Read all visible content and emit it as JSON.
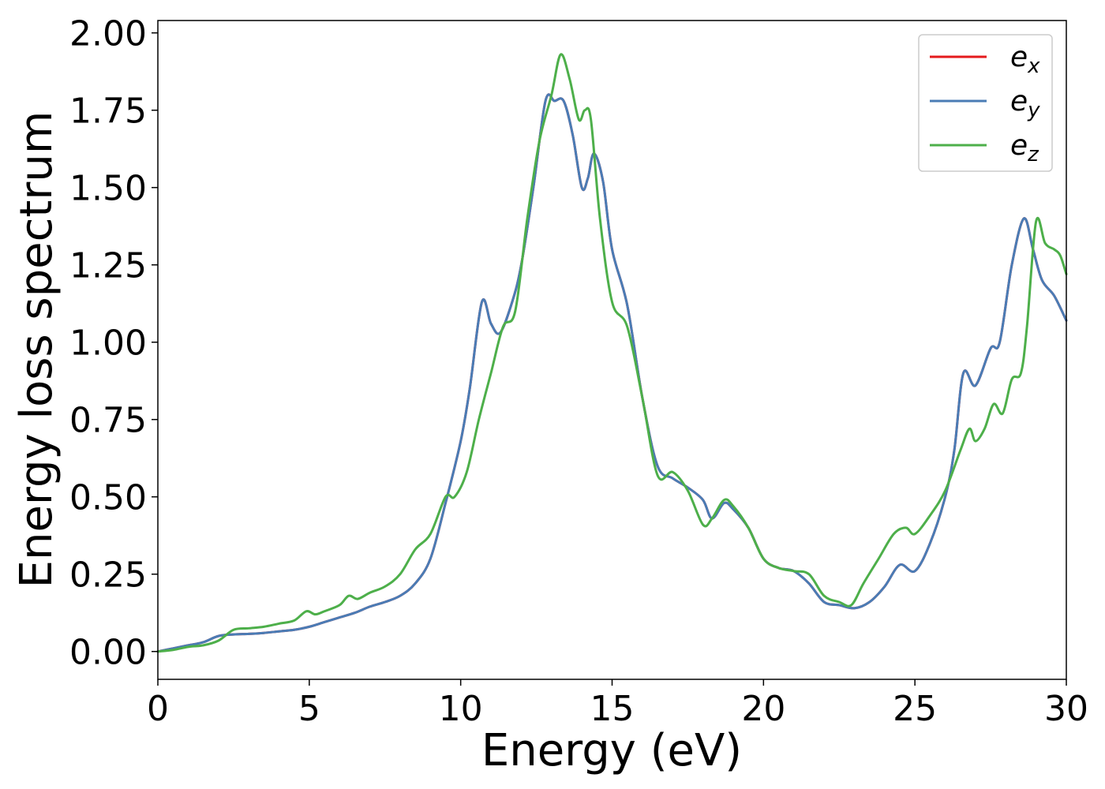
{
  "chart_data": {
    "type": "line",
    "title": "",
    "xlabel": "Energy (eV)",
    "ylabel": "Energy loss spectrum",
    "xlim": [
      0,
      30
    ],
    "ylim": [
      -0.09,
      2.04
    ],
    "xticks": [
      0,
      5,
      10,
      15,
      20,
      25,
      30
    ],
    "xtick_labels": [
      "0",
      "5",
      "10",
      "15",
      "20",
      "25",
      "30"
    ],
    "yticks": [
      0.0,
      0.25,
      0.5,
      0.75,
      1.0,
      1.25,
      1.5,
      1.75,
      2.0
    ],
    "ytick_labels": [
      "0.00",
      "0.25",
      "0.50",
      "0.75",
      "1.00",
      "1.25",
      "1.50",
      "1.75",
      "2.00"
    ],
    "grid": false,
    "legend_position": "top-right",
    "series": [
      {
        "name": "e_x",
        "legend_base": "e",
        "legend_sub": "x",
        "color": "#e41a1c",
        "x": [
          0,
          0.5,
          1,
          1.5,
          2,
          2.5,
          3,
          3.5,
          4,
          4.5,
          5,
          5.5,
          6,
          6.5,
          7,
          7.5,
          8,
          8.5,
          9,
          9.5,
          10,
          10.3,
          10.7,
          11.0,
          11.3,
          11.7,
          12.0,
          12.4,
          12.8,
          13.1,
          13.4,
          13.7,
          14.0,
          14.2,
          14.4,
          14.7,
          15.0,
          15.5,
          16.0,
          16.5,
          17.0,
          17.5,
          18.0,
          18.3,
          18.7,
          19.0,
          19.5,
          20.0,
          20.5,
          21.0,
          21.5,
          22.0,
          22.5,
          23.0,
          23.5,
          24.0,
          24.5,
          25.0,
          25.5,
          26.0,
          26.3,
          26.6,
          27.0,
          27.5,
          27.8,
          28.2,
          28.6,
          28.9,
          29.2,
          29.6,
          30
        ],
        "y": [
          0.0,
          0.01,
          0.02,
          0.03,
          0.05,
          0.055,
          0.057,
          0.06,
          0.065,
          0.07,
          0.08,
          0.095,
          0.11,
          0.125,
          0.145,
          0.16,
          0.18,
          0.22,
          0.3,
          0.48,
          0.68,
          0.85,
          1.13,
          1.06,
          1.03,
          1.13,
          1.25,
          1.5,
          1.78,
          1.78,
          1.78,
          1.67,
          1.5,
          1.53,
          1.61,
          1.52,
          1.3,
          1.12,
          0.82,
          0.6,
          0.56,
          0.53,
          0.49,
          0.43,
          0.48,
          0.46,
          0.4,
          0.3,
          0.27,
          0.26,
          0.22,
          0.16,
          0.15,
          0.14,
          0.16,
          0.21,
          0.28,
          0.26,
          0.35,
          0.5,
          0.65,
          0.9,
          0.86,
          0.98,
          1.0,
          1.25,
          1.4,
          1.3,
          1.2,
          1.15,
          1.07
        ]
      },
      {
        "name": "e_y",
        "legend_base": "e",
        "legend_sub": "y",
        "color": "#4a7cb5",
        "x": [
          0,
          0.5,
          1,
          1.5,
          2,
          2.5,
          3,
          3.5,
          4,
          4.5,
          5,
          5.5,
          6,
          6.5,
          7,
          7.5,
          8,
          8.5,
          9,
          9.5,
          10,
          10.3,
          10.7,
          11.0,
          11.3,
          11.7,
          12.0,
          12.4,
          12.8,
          13.1,
          13.4,
          13.7,
          14.0,
          14.2,
          14.4,
          14.7,
          15.0,
          15.5,
          16.0,
          16.5,
          17.0,
          17.5,
          18.0,
          18.3,
          18.7,
          19.0,
          19.5,
          20.0,
          20.5,
          21.0,
          21.5,
          22.0,
          22.5,
          23.0,
          23.5,
          24.0,
          24.5,
          25.0,
          25.5,
          26.0,
          26.3,
          26.6,
          27.0,
          27.5,
          27.8,
          28.2,
          28.6,
          28.9,
          29.2,
          29.6,
          30
        ],
        "y": [
          0.0,
          0.01,
          0.02,
          0.03,
          0.05,
          0.055,
          0.057,
          0.06,
          0.065,
          0.07,
          0.08,
          0.095,
          0.11,
          0.125,
          0.145,
          0.16,
          0.18,
          0.22,
          0.3,
          0.48,
          0.68,
          0.85,
          1.13,
          1.06,
          1.03,
          1.13,
          1.25,
          1.5,
          1.78,
          1.78,
          1.78,
          1.67,
          1.5,
          1.53,
          1.61,
          1.52,
          1.3,
          1.12,
          0.82,
          0.6,
          0.56,
          0.53,
          0.49,
          0.43,
          0.48,
          0.46,
          0.4,
          0.3,
          0.27,
          0.26,
          0.22,
          0.16,
          0.15,
          0.14,
          0.16,
          0.21,
          0.28,
          0.26,
          0.35,
          0.5,
          0.65,
          0.9,
          0.86,
          0.98,
          1.0,
          1.25,
          1.4,
          1.3,
          1.2,
          1.15,
          1.07
        ]
      },
      {
        "name": "e_z",
        "legend_base": "e",
        "legend_sub": "z",
        "color": "#4daf4a",
        "x": [
          0,
          0.5,
          1,
          1.5,
          2,
          2.5,
          3,
          3.5,
          4,
          4.5,
          4.9,
          5.2,
          5.5,
          6.0,
          6.3,
          6.6,
          7.0,
          7.5,
          8.0,
          8.5,
          9.0,
          9.5,
          9.8,
          10.2,
          10.6,
          11.0,
          11.4,
          11.8,
          12.2,
          12.6,
          13.0,
          13.3,
          13.6,
          13.9,
          14.1,
          14.3,
          14.6,
          15.0,
          15.5,
          16.0,
          16.5,
          17.0,
          17.5,
          18.0,
          18.3,
          18.7,
          19.0,
          19.5,
          20.0,
          20.5,
          21.0,
          21.5,
          22.0,
          22.5,
          22.9,
          23.3,
          23.8,
          24.3,
          24.7,
          25.0,
          25.5,
          26.0,
          26.5,
          26.8,
          27.0,
          27.3,
          27.6,
          27.9,
          28.2,
          28.5,
          28.7,
          29.0,
          29.3,
          29.6,
          29.8,
          30
        ],
        "y": [
          0.0,
          0.005,
          0.015,
          0.02,
          0.035,
          0.07,
          0.075,
          0.08,
          0.09,
          0.1,
          0.13,
          0.12,
          0.13,
          0.15,
          0.18,
          0.17,
          0.19,
          0.21,
          0.25,
          0.33,
          0.38,
          0.5,
          0.5,
          0.58,
          0.75,
          0.9,
          1.05,
          1.1,
          1.4,
          1.65,
          1.8,
          1.93,
          1.85,
          1.72,
          1.75,
          1.72,
          1.4,
          1.13,
          1.05,
          0.82,
          0.57,
          0.58,
          0.52,
          0.41,
          0.43,
          0.49,
          0.47,
          0.4,
          0.3,
          0.27,
          0.26,
          0.25,
          0.18,
          0.16,
          0.15,
          0.22,
          0.3,
          0.38,
          0.4,
          0.38,
          0.44,
          0.52,
          0.65,
          0.72,
          0.68,
          0.72,
          0.8,
          0.77,
          0.88,
          0.9,
          1.05,
          1.39,
          1.32,
          1.3,
          1.28,
          1.22
        ]
      }
    ]
  }
}
